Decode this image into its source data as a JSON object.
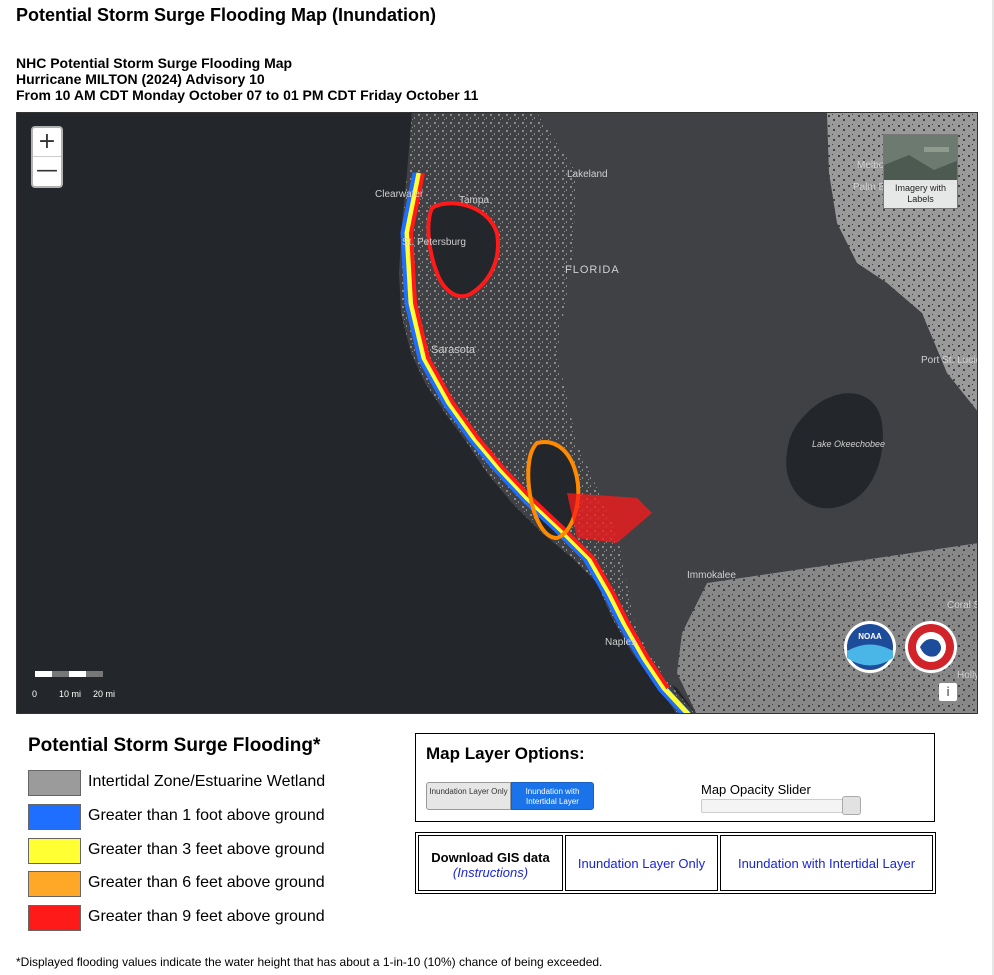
{
  "page_title": "Potential Storm Surge Flooding Map (Inundation)",
  "subtitle_lines": [
    "NHC Potential Storm Surge Flooding Map",
    "Hurricane MILTON (2024) Advisory 10",
    "From 10 AM CDT Monday October 07 to 01 PM CDT Friday October 11"
  ],
  "map": {
    "zoom_in": "+",
    "zoom_out": "—",
    "basemap_toggle_label": "Imagery with Labels",
    "info_icon": "i",
    "place_labels": [
      "Lakeland",
      "Clearwater",
      "Tampa",
      "St. Petersburg",
      "FLORIDA",
      "Sarasota",
      "Lake Okeechobee",
      "Port St. Lucie",
      "Immokalee",
      "Naples",
      "Melbourne",
      "Palm Bay",
      "Coral Springs",
      "Hollywood"
    ],
    "scale_bar": {
      "labels": [
        "0",
        "10 mi",
        "20 mi"
      ]
    },
    "logos": [
      "noaa-logo",
      "national-weather-service-logo"
    ],
    "colors": {
      "water": "#23262a",
      "land": "#3f4145",
      "urban": "#9a9a9a",
      "label": "#d0d0d0"
    }
  },
  "legend": {
    "title": "Potential Storm Surge Flooding*",
    "items": [
      {
        "label": "Intertidal Zone/Estuarine Wetland",
        "color": "#9b9b9b"
      },
      {
        "label": "Greater than 1 foot above ground",
        "color": "#1e6fff"
      },
      {
        "label": "Greater than 3 feet above ground",
        "color": "#ffff33"
      },
      {
        "label": "Greater than 6 feet above ground",
        "color": "#ffa726"
      },
      {
        "label": "Greater than 9 feet above ground",
        "color": "#ff1a1a"
      }
    ]
  },
  "options": {
    "title": "Map Layer Options:",
    "toggle_off_label": "Inundation Layer Only",
    "toggle_on_label": "Inundation with Intertidal Layer",
    "slider_label": "Map Opacity Slider",
    "slider_value": 0.9
  },
  "gis": {
    "download_label": "Download GIS data",
    "instructions_label": "(Instructions)",
    "link_inundation_only": "Inundation Layer Only",
    "link_with_intertidal": "Inundation with Intertidal Layer"
  },
  "footnote": "*Displayed flooding values indicate the water height that has about a 1-in-10 (10%) chance of being exceeded."
}
